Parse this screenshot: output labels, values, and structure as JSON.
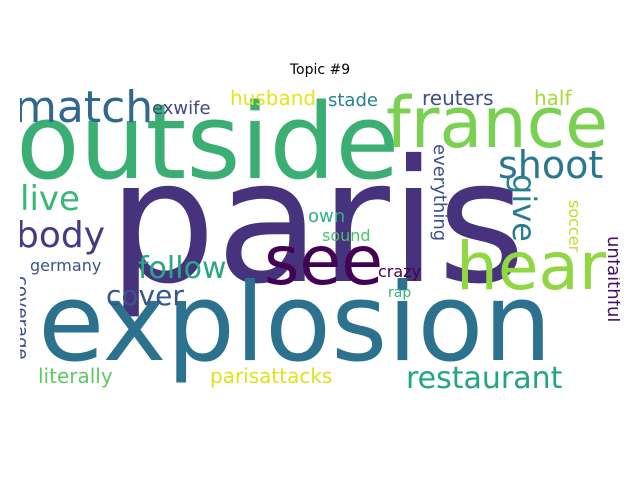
{
  "title": "Topic #9",
  "colors": {
    "paris": "#47337d",
    "outside": "#3aae73",
    "explosion": "#2c728e",
    "france": "#7ad151",
    "hear": "#90d743",
    "see": "#440154",
    "match": "#31688e",
    "shoot": "#2a788e",
    "body": "#443b84",
    "live": "#38b977",
    "give": "#287d8e",
    "follow": "#27a884",
    "cover": "#39568c",
    "restaurant": "#21a585",
    "coverage": "#3e4a89",
    "literally": "#5ec962",
    "parisattacks": "#dde318",
    "everything": "#3b518b",
    "husband": "#e5e419",
    "stade": "#26818e",
    "reuters": "#3d4e8a",
    "half": "#9fda3a",
    "exwife": "#3f4889",
    "germany": "#3a548c",
    "own": "#2db27d",
    "sound": "#4ac16d",
    "crazy": "#440154",
    "rap": "#35b779",
    "soccer": "#bddf26",
    "unfaithful": "#471063"
  },
  "words": {
    "paris": "paris",
    "outside": "outside",
    "explosion": "explosion",
    "france": "france",
    "hear": "hear",
    "see": "see",
    "match": "match",
    "shoot": "shoot",
    "body": "body",
    "live": "live",
    "give": "give",
    "follow": "follow",
    "cover": "cover",
    "restaurant": "restaurant",
    "coverage": "coverage",
    "literally": "literally",
    "parisattacks": "parisattacks",
    "everything": "everything",
    "husband": "husband",
    "stade": "stade",
    "reuters": "reuters",
    "half": "half",
    "exwife": "exwife",
    "germany": "germany",
    "own": "own",
    "sound": "sound",
    "crazy": "crazy",
    "rap": "rap",
    "soccer": "soccer",
    "unfaithful": "unfaithful"
  }
}
